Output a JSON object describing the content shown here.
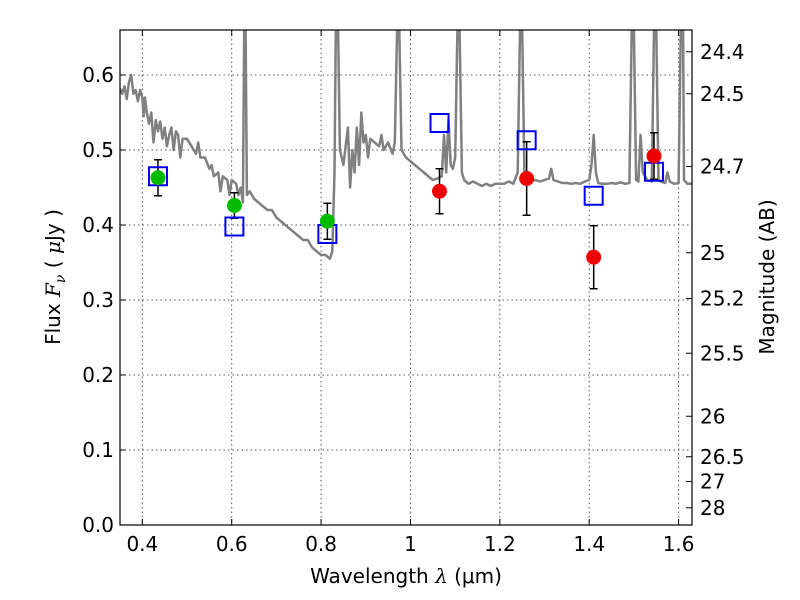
{
  "chart_data": {
    "type": "scatter",
    "xlabel": "Wavelength  λ (μm)",
    "ylabel": "Flux  F_ν  ( μJy )",
    "ylabel_parts": {
      "prefix": "Flux  ",
      "symbol": "F",
      "subscript": "ν",
      "paren_open": "  ( ",
      "mu": "μ",
      "unit": "Jy )"
    },
    "xlabel_parts": {
      "prefix": "Wavelength  ",
      "symbol": "λ",
      "unit": " (μm)"
    },
    "right_ylabel": "Magnitude (AB)",
    "xlim": [
      0.35,
      1.63
    ],
    "ylim": [
      0.0,
      0.66
    ],
    "grid": true,
    "x_ticks": [
      0.4,
      0.6,
      0.8,
      1.0,
      1.2,
      1.4,
      1.6
    ],
    "x_tick_labels": [
      "0.4",
      "0.6",
      "0.8",
      "1",
      "1.2",
      "1.4",
      "1.6"
    ],
    "y_ticks": [
      0.0,
      0.1,
      0.2,
      0.3,
      0.4,
      0.5,
      0.6
    ],
    "y_tick_labels": [
      "0.0",
      "0.1",
      "0.2",
      "0.3",
      "0.4",
      "0.5",
      "0.6"
    ],
    "right_ticks": [
      {
        "flux": 0.631,
        "label": "24.4"
      },
      {
        "flux": 0.575,
        "label": "24.5"
      },
      {
        "flux": 0.478,
        "label": "24.7"
      },
      {
        "flux": 0.363,
        "label": "25"
      },
      {
        "flux": 0.302,
        "label": "25.2"
      },
      {
        "flux": 0.229,
        "label": "25.5"
      },
      {
        "flux": 0.145,
        "label": "26"
      },
      {
        "flux": 0.091,
        "label": "26.5"
      },
      {
        "flux": 0.058,
        "label": "27"
      },
      {
        "flux": 0.023,
        "label": "28"
      }
    ],
    "series": [
      {
        "marker": "circle",
        "color": "#00bb00",
        "points": [
          {
            "x": 0.435,
            "y": 0.463,
            "err": 0.024
          },
          {
            "x": 0.606,
            "y": 0.426,
            "err": 0.017
          },
          {
            "x": 0.814,
            "y": 0.405,
            "err": 0.024
          }
        ]
      },
      {
        "marker": "circle",
        "color": "#ee0000",
        "points": [
          {
            "x": 1.065,
            "y": 0.445,
            "err": 0.03
          },
          {
            "x": 1.26,
            "y": 0.462,
            "err": 0.049
          },
          {
            "x": 1.41,
            "y": 0.357,
            "err": 0.042
          },
          {
            "x": 1.545,
            "y": 0.492,
            "err": 0.031
          }
        ]
      },
      {
        "marker": "square",
        "color": "#0000ee",
        "points": [
          {
            "x": 0.435,
            "y": 0.465
          },
          {
            "x": 0.606,
            "y": 0.398
          },
          {
            "x": 0.814,
            "y": 0.388
          },
          {
            "x": 1.065,
            "y": 0.536
          },
          {
            "x": 1.26,
            "y": 0.513
          },
          {
            "x": 1.41,
            "y": 0.439
          },
          {
            "x": 1.545,
            "y": 0.471
          }
        ]
      }
    ],
    "model_spectrum": {
      "color": "#808080",
      "points": [
        [
          0.35,
          0.582
        ],
        [
          0.355,
          0.575
        ],
        [
          0.36,
          0.585
        ],
        [
          0.365,
          0.568
        ],
        [
          0.37,
          0.59
        ],
        [
          0.375,
          0.6
        ],
        [
          0.38,
          0.575
        ],
        [
          0.385,
          0.58
        ],
        [
          0.39,
          0.565
        ],
        [
          0.395,
          0.58
        ],
        [
          0.4,
          0.57
        ],
        [
          0.403,
          0.545
        ],
        [
          0.406,
          0.57
        ],
        [
          0.41,
          0.55
        ],
        [
          0.415,
          0.535
        ],
        [
          0.42,
          0.55
        ],
        [
          0.425,
          0.51
        ],
        [
          0.43,
          0.54
        ],
        [
          0.435,
          0.525
        ],
        [
          0.44,
          0.538
        ],
        [
          0.445,
          0.515
        ],
        [
          0.45,
          0.53
        ],
        [
          0.455,
          0.505
        ],
        [
          0.46,
          0.52
        ],
        [
          0.465,
          0.53
        ],
        [
          0.47,
          0.5
        ],
        [
          0.475,
          0.525
        ],
        [
          0.48,
          0.52
        ],
        [
          0.485,
          0.49
        ],
        [
          0.49,
          0.515
        ],
        [
          0.5,
          0.515
        ],
        [
          0.51,
          0.505
        ],
        [
          0.52,
          0.495
        ],
        [
          0.525,
          0.51
        ],
        [
          0.53,
          0.49
        ],
        [
          0.54,
          0.49
        ],
        [
          0.55,
          0.475
        ],
        [
          0.555,
          0.48
        ],
        [
          0.56,
          0.465
        ],
        [
          0.57,
          0.47
        ],
        [
          0.575,
          0.445
        ],
        [
          0.58,
          0.465
        ],
        [
          0.59,
          0.46
        ],
        [
          0.595,
          0.44
        ],
        [
          0.6,
          0.46
        ],
        [
          0.61,
          0.455
        ],
        [
          0.615,
          0.44
        ],
        [
          0.62,
          0.45
        ],
        [
          0.625,
          0.43
        ],
        [
          0.628,
          0.66
        ],
        [
          0.631,
          0.66
        ],
        [
          0.634,
          0.44
        ],
        [
          0.64,
          0.445
        ],
        [
          0.65,
          0.435
        ],
        [
          0.66,
          0.43
        ],
        [
          0.67,
          0.425
        ],
        [
          0.68,
          0.42
        ],
        [
          0.69,
          0.42
        ],
        [
          0.7,
          0.41
        ],
        [
          0.71,
          0.405
        ],
        [
          0.72,
          0.4
        ],
        [
          0.73,
          0.395
        ],
        [
          0.74,
          0.39
        ],
        [
          0.75,
          0.385
        ],
        [
          0.76,
          0.38
        ],
        [
          0.77,
          0.38
        ],
        [
          0.78,
          0.37
        ],
        [
          0.79,
          0.365
        ],
        [
          0.8,
          0.36
        ],
        [
          0.81,
          0.36
        ],
        [
          0.82,
          0.355
        ],
        [
          0.825,
          0.365
        ],
        [
          0.83,
          0.47
        ],
        [
          0.833,
          0.66
        ],
        [
          0.838,
          0.66
        ],
        [
          0.842,
          0.5
        ],
        [
          0.85,
          0.48
        ],
        [
          0.86,
          0.53
        ],
        [
          0.865,
          0.45
        ],
        [
          0.87,
          0.5
        ],
        [
          0.875,
          0.47
        ],
        [
          0.88,
          0.53
        ],
        [
          0.885,
          0.48
        ],
        [
          0.89,
          0.55
        ],
        [
          0.895,
          0.51
        ],
        [
          0.9,
          0.52
        ],
        [
          0.905,
          0.49
        ],
        [
          0.91,
          0.515
        ],
        [
          0.92,
          0.51
        ],
        [
          0.93,
          0.505
        ],
        [
          0.935,
          0.52
        ],
        [
          0.94,
          0.5
        ],
        [
          0.95,
          0.51
        ],
        [
          0.96,
          0.495
        ],
        [
          0.965,
          0.51
        ],
        [
          0.97,
          0.66
        ],
        [
          0.975,
          0.66
        ],
        [
          0.98,
          0.5
        ],
        [
          0.99,
          0.49
        ],
        [
          1.0,
          0.485
        ],
        [
          1.01,
          0.48
        ],
        [
          1.02,
          0.475
        ],
        [
          1.03,
          0.47
        ],
        [
          1.04,
          0.465
        ],
        [
          1.05,
          0.46
        ],
        [
          1.06,
          0.462
        ],
        [
          1.07,
          0.465
        ],
        [
          1.075,
          0.52
        ],
        [
          1.08,
          0.47
        ],
        [
          1.085,
          0.54
        ],
        [
          1.09,
          0.48
        ],
        [
          1.095,
          0.475
        ],
        [
          1.1,
          0.49
        ],
        [
          1.105,
          0.66
        ],
        [
          1.11,
          0.66
        ],
        [
          1.115,
          0.47
        ],
        [
          1.12,
          0.46
        ],
        [
          1.13,
          0.455
        ],
        [
          1.14,
          0.458
        ],
        [
          1.15,
          0.455
        ],
        [
          1.16,
          0.452
        ],
        [
          1.17,
          0.455
        ],
        [
          1.18,
          0.452
        ],
        [
          1.19,
          0.455
        ],
        [
          1.2,
          0.455
        ],
        [
          1.21,
          0.455
        ],
        [
          1.22,
          0.458
        ],
        [
          1.23,
          0.455
        ],
        [
          1.24,
          0.47
        ],
        [
          1.245,
          0.66
        ],
        [
          1.25,
          0.66
        ],
        [
          1.255,
          0.47
        ],
        [
          1.26,
          0.46
        ],
        [
          1.27,
          0.458
        ],
        [
          1.28,
          0.46
        ],
        [
          1.29,
          0.458
        ],
        [
          1.3,
          0.46
        ],
        [
          1.31,
          0.462
        ],
        [
          1.315,
          0.475
        ],
        [
          1.32,
          0.46
        ],
        [
          1.33,
          0.458
        ],
        [
          1.34,
          0.456
        ],
        [
          1.35,
          0.456
        ],
        [
          1.36,
          0.455
        ],
        [
          1.37,
          0.456
        ],
        [
          1.38,
          0.455
        ],
        [
          1.39,
          0.458
        ],
        [
          1.4,
          0.46
        ],
        [
          1.405,
          0.48
        ],
        [
          1.41,
          0.52
        ],
        [
          1.415,
          0.47
        ],
        [
          1.42,
          0.456
        ],
        [
          1.43,
          0.455
        ],
        [
          1.44,
          0.455
        ],
        [
          1.45,
          0.456
        ],
        [
          1.46,
          0.455
        ],
        [
          1.47,
          0.457
        ],
        [
          1.48,
          0.455
        ],
        [
          1.49,
          0.456
        ],
        [
          1.495,
          0.66
        ],
        [
          1.5,
          0.66
        ],
        [
          1.505,
          0.46
        ],
        [
          1.51,
          0.458
        ],
        [
          1.515,
          0.52
        ],
        [
          1.52,
          0.47
        ],
        [
          1.53,
          0.46
        ],
        [
          1.54,
          0.458
        ],
        [
          1.545,
          0.66
        ],
        [
          1.55,
          0.66
        ],
        [
          1.555,
          0.46
        ],
        [
          1.56,
          0.458
        ],
        [
          1.57,
          0.456
        ],
        [
          1.575,
          0.47
        ],
        [
          1.58,
          0.458
        ],
        [
          1.59,
          0.455
        ],
        [
          1.6,
          0.456
        ],
        [
          1.605,
          0.66
        ],
        [
          1.61,
          0.66
        ],
        [
          1.612,
          0.46
        ],
        [
          1.62,
          0.455
        ],
        [
          1.63,
          0.455
        ]
      ]
    }
  }
}
